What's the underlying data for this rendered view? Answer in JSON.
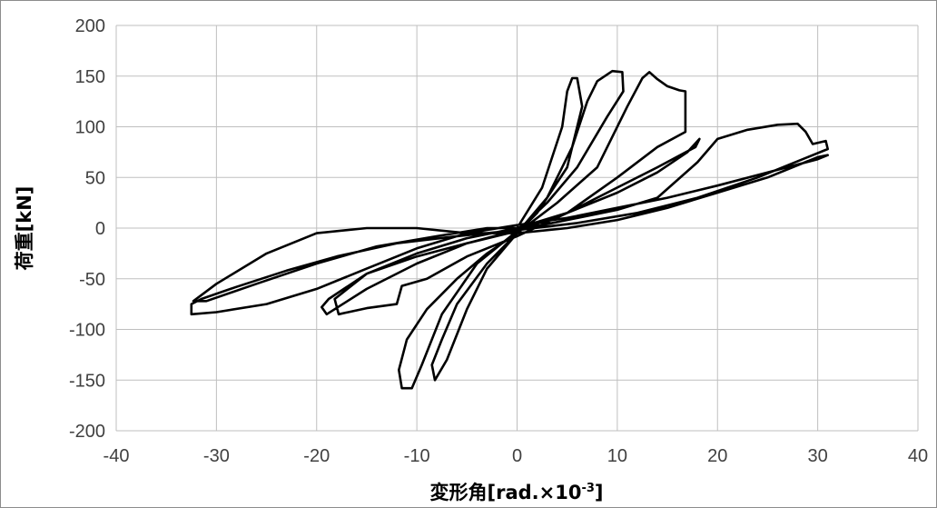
{
  "chart_data": {
    "type": "line",
    "title": "",
    "xlabel": "変形角[rad.×10",
    "xlabel_sup": "-3",
    "xlabel_end": "]",
    "ylabel": "荷重[kN]",
    "xlim": [
      -40,
      40
    ],
    "ylim": [
      -200,
      200
    ],
    "xticks": [
      -40,
      -30,
      -20,
      -10,
      0,
      10,
      20,
      30,
      40
    ],
    "yticks": [
      200,
      150,
      100,
      50,
      0,
      -50,
      -100,
      -150,
      -200
    ],
    "grid": true,
    "legend": "none",
    "line_color": "#000000",
    "series": [
      {
        "values": [
          [
            0,
            0
          ],
          [
            2.5,
            40
          ],
          [
            4.5,
            100
          ],
          [
            5,
            135
          ],
          [
            5.5,
            148
          ],
          [
            6,
            148
          ],
          [
            6.5,
            120
          ],
          [
            5,
            60
          ],
          [
            2,
            15
          ],
          [
            0,
            -5
          ],
          [
            -3,
            -35
          ],
          [
            -6,
            -75
          ],
          [
            -7.5,
            -110
          ],
          [
            -8.5,
            -135
          ],
          [
            -8.2,
            -150
          ],
          [
            -7,
            -130
          ],
          [
            -5,
            -80
          ],
          [
            -3,
            -40
          ],
          [
            0,
            -5
          ],
          [
            3,
            30
          ],
          [
            5.5,
            80
          ],
          [
            7,
            125
          ],
          [
            8,
            145
          ],
          [
            9.5,
            155
          ],
          [
            10.5,
            154
          ],
          [
            10.6,
            135
          ],
          [
            9,
            110
          ],
          [
            6,
            60
          ],
          [
            3,
            25
          ],
          [
            0,
            -3
          ],
          [
            -4,
            -35
          ],
          [
            -7.5,
            -85
          ],
          [
            -9.5,
            -135
          ],
          [
            -10.5,
            -158
          ],
          [
            -11.5,
            -158
          ],
          [
            -11.8,
            -140
          ],
          [
            -11,
            -110
          ],
          [
            -9,
            -80
          ],
          [
            -6,
            -50
          ],
          [
            -3,
            -25
          ],
          [
            0,
            -5
          ],
          [
            4,
            25
          ],
          [
            8,
            60
          ],
          [
            11,
            120
          ],
          [
            12.5,
            148
          ],
          [
            13.2,
            154
          ],
          [
            14,
            147
          ],
          [
            15,
            140
          ],
          [
            16.2,
            136
          ],
          [
            16.8,
            135
          ],
          [
            16.8,
            95
          ],
          [
            14,
            80
          ],
          [
            10,
            50
          ],
          [
            5,
            15
          ],
          [
            0,
            -8
          ],
          [
            -5,
            -28
          ],
          [
            -9,
            -50
          ],
          [
            -11.5,
            -57
          ],
          [
            -12,
            -75
          ],
          [
            -15,
            -79
          ],
          [
            -17.8,
            -85
          ],
          [
            -18.2,
            -70
          ],
          [
            -15,
            -45
          ],
          [
            -10,
            -25
          ],
          [
            -5,
            -10
          ],
          [
            0,
            0
          ],
          [
            5,
            15
          ],
          [
            10,
            35
          ],
          [
            14,
            55
          ],
          [
            17,
            75
          ],
          [
            18.2,
            88
          ],
          [
            17.8,
            80
          ],
          [
            14,
            60
          ],
          [
            10,
            40
          ],
          [
            5,
            15
          ],
          [
            0,
            -3
          ],
          [
            -5,
            -15
          ],
          [
            -10,
            -28
          ],
          [
            -15,
            -45
          ],
          [
            -18.8,
            -70
          ],
          [
            -19.5,
            -78
          ],
          [
            -19,
            -85
          ],
          [
            -15,
            -60
          ],
          [
            -10,
            -35
          ],
          [
            -5,
            -15
          ],
          [
            0,
            -2
          ],
          [
            5,
            8
          ],
          [
            10,
            18
          ],
          [
            14,
            30
          ],
          [
            18,
            65
          ],
          [
            20,
            88
          ],
          [
            23,
            97
          ],
          [
            26,
            102
          ],
          [
            28,
            103
          ],
          [
            28.8,
            95
          ],
          [
            29.5,
            83
          ],
          [
            30.8,
            86
          ],
          [
            31,
            78
          ],
          [
            29,
            70
          ],
          [
            24,
            50
          ],
          [
            18,
            30
          ],
          [
            12,
            15
          ],
          [
            6,
            5
          ],
          [
            0,
            -2
          ],
          [
            -6,
            -8
          ],
          [
            -12,
            -15
          ],
          [
            -18,
            -28
          ],
          [
            -23,
            -42
          ],
          [
            -28,
            -58
          ],
          [
            -31.5,
            -70
          ],
          [
            -32.5,
            -75
          ],
          [
            -32.5,
            -85
          ],
          [
            -30,
            -83
          ],
          [
            -25,
            -75
          ],
          [
            -20,
            -60
          ],
          [
            -15,
            -40
          ],
          [
            -10,
            -20
          ],
          [
            -5,
            -5
          ],
          [
            0,
            3
          ],
          [
            5,
            10
          ],
          [
            10,
            20
          ],
          [
            15,
            30
          ],
          [
            20,
            42
          ],
          [
            25,
            55
          ],
          [
            30,
            68
          ],
          [
            31,
            72
          ],
          [
            30,
            70
          ],
          [
            25,
            50
          ],
          [
            20,
            35
          ],
          [
            15,
            20
          ],
          [
            10,
            8
          ],
          [
            5,
            0
          ],
          [
            0,
            -5
          ],
          [
            -5,
            -5
          ],
          [
            -10,
            0
          ],
          [
            -15,
            0
          ],
          [
            -20,
            -5
          ],
          [
            -25,
            -25
          ],
          [
            -30,
            -55
          ],
          [
            -32.3,
            -72
          ],
          [
            -31,
            -72
          ],
          [
            -26,
            -55
          ],
          [
            -20,
            -35
          ],
          [
            -14,
            -18
          ],
          [
            -8,
            -8
          ],
          [
            -3,
            0
          ],
          [
            0,
            0
          ]
        ]
      }
    ]
  }
}
